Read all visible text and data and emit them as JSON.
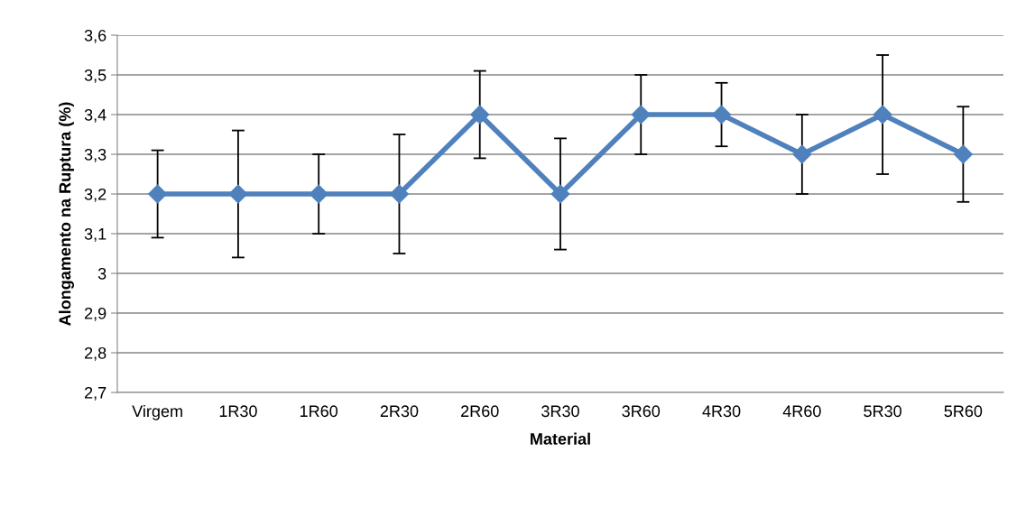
{
  "chart_data": {
    "type": "line",
    "xlabel": "Material",
    "ylabel": "Alongamento na Ruptura (%)",
    "categories": [
      "Virgem",
      "1R30",
      "1R60",
      "2R30",
      "2R60",
      "3R30",
      "3R60",
      "4R30",
      "4R60",
      "5R30",
      "5R60"
    ],
    "series": [
      {
        "color": "#4f81bd",
        "values": [
          3.2,
          3.2,
          3.2,
          3.2,
          3.4,
          3.2,
          3.4,
          3.4,
          3.3,
          3.4,
          3.3
        ],
        "errors": [
          0.11,
          0.16,
          0.1,
          0.15,
          0.11,
          0.14,
          0.1,
          0.08,
          0.1,
          0.15,
          0.12
        ]
      }
    ],
    "ylim": [
      2.7,
      3.6
    ],
    "yticks": [
      {
        "value": 2.7,
        "label": "2,7"
      },
      {
        "value": 2.8,
        "label": "2,8"
      },
      {
        "value": 2.9,
        "label": "2,9"
      },
      3,
      {
        "value": 3.1,
        "label": "3,1"
      },
      {
        "value": 3.2,
        "label": "3,2"
      },
      {
        "value": 3.3,
        "label": "3,3"
      },
      {
        "value": 3.4,
        "label": "3,4"
      },
      {
        "value": 3.5,
        "label": "3,5"
      },
      {
        "value": 3.6,
        "label": "3,6"
      }
    ],
    "grid": "y",
    "marker": "diamond",
    "line_style": "solid"
  }
}
